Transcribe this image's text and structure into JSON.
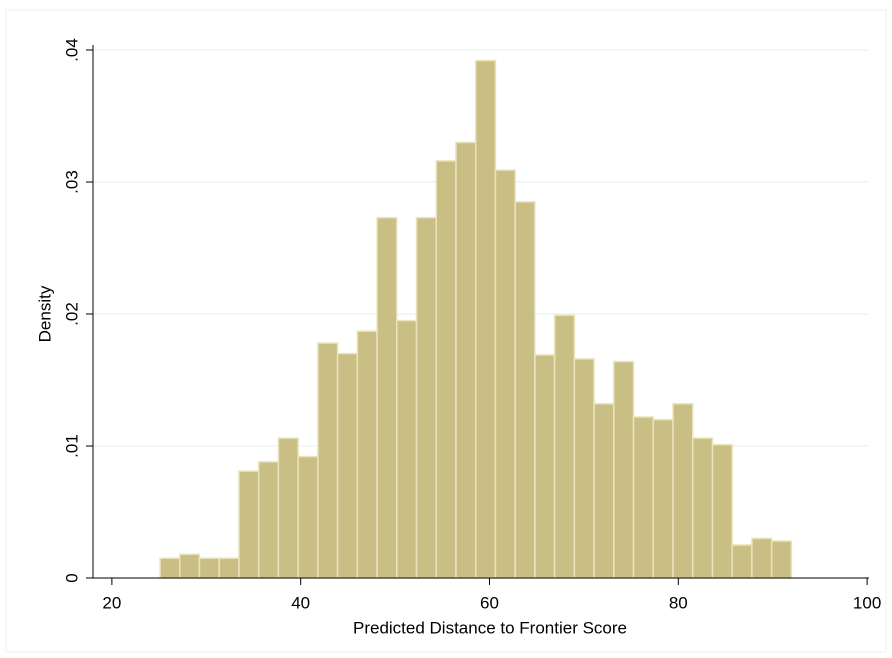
{
  "chart_data": {
    "type": "histogram",
    "xlabel": "Predicted Distance to Frontier Score",
    "ylabel": "Density",
    "bins": [
      25.1,
      27.19,
      29.28,
      31.37,
      33.46,
      35.55,
      37.64,
      39.73,
      41.82,
      43.91,
      46,
      48.09,
      50.18,
      52.27,
      54.36,
      56.45,
      58.54,
      60.63,
      62.72,
      64.81,
      66.9,
      68.99,
      71.08,
      73.17,
      75.26,
      77.35,
      79.44,
      81.53,
      83.62,
      85.71,
      87.8,
      89.89,
      91.98
    ],
    "values": [
      0.0015,
      0.0018,
      0.0015,
      0.0015,
      0.0081,
      0.0088,
      0.0106,
      0.0092,
      0.0178,
      0.017,
      0.0187,
      0.0273,
      0.0195,
      0.0273,
      0.0316,
      0.033,
      0.0392,
      0.0309,
      0.0285,
      0.0169,
      0.0199,
      0.0166,
      0.0132,
      0.0164,
      0.0122,
      0.012,
      0.0132,
      0.0106,
      0.0101,
      0.0025,
      0.003,
      0.0028
    ],
    "color": "#c9bf84",
    "edgecolor": "#eae4bd",
    "xlim": [
      18,
      100.2
    ],
    "ylim": [
      0,
      0.04
    ],
    "xticks": [
      20,
      40,
      60,
      80,
      100
    ],
    "yticks": [
      0,
      {
        "value": 0.01,
        "label": ".01"
      },
      {
        "value": 0.02,
        "label": ".02"
      },
      {
        "value": 0.03,
        "label": ".03"
      },
      {
        "value": 0.04,
        "label": ".04"
      }
    ],
    "grid": true
  }
}
